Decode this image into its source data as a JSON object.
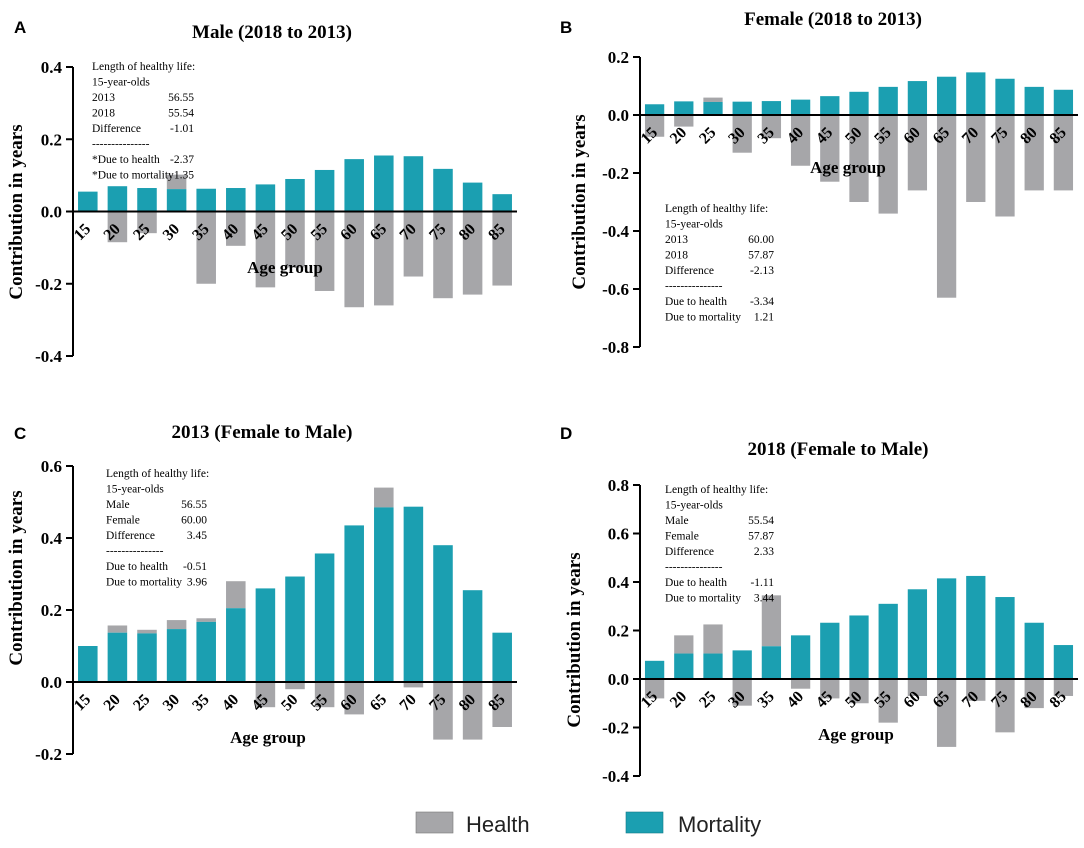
{
  "figure": {
    "legend": [
      {
        "label": "Health",
        "color": "#a6a6a9"
      },
      {
        "label": "Mortality",
        "color": "#1b9fb1"
      }
    ],
    "colors": {
      "health": "#a6a6a9",
      "mortality": "#1b9fb1",
      "axis": "#000000"
    }
  },
  "chart_data": [
    {
      "panel": "A",
      "type": "bar",
      "stacking": "stacked-diverging",
      "title": "Male (2018 to 2013)",
      "xlabel": "Age group",
      "ylabel": "Contribution in years",
      "ylim": [
        -0.4,
        0.4
      ],
      "yticks": [
        -0.4,
        -0.2,
        0.0,
        0.2,
        0.4
      ],
      "ytick_labels": [
        "-0.4",
        "-0.2",
        "0.0",
        "0.2",
        "0.4"
      ],
      "categories": [
        "15",
        "20",
        "25",
        "30",
        "35",
        "40",
        "45",
        "50",
        "55",
        "60",
        "65",
        "70",
        "75",
        "80",
        "85"
      ],
      "series": [
        {
          "name": "Health",
          "values": [
            0.0,
            -0.085,
            -0.06,
            0.04,
            -0.2,
            -0.095,
            -0.21,
            -0.155,
            -0.22,
            -0.265,
            -0.26,
            -0.18,
            -0.24,
            -0.23,
            -0.205
          ]
        },
        {
          "name": "Mortality",
          "values": [
            0.055,
            0.07,
            0.065,
            0.062,
            0.063,
            0.065,
            0.075,
            0.09,
            0.115,
            0.145,
            0.155,
            0.153,
            0.118,
            0.08,
            0.048
          ]
        }
      ],
      "annotation": [
        {
          "label": "Length of healthy life:",
          "value": ""
        },
        {
          "label": "15-year-olds",
          "value": ""
        },
        {
          "label": "2013",
          "value": "56.55"
        },
        {
          "label": "2018",
          "value": "55.54"
        },
        {
          "label": "Difference",
          "value": "-1.01"
        },
        {
          "label": "---------------",
          "value": ""
        },
        {
          "label": "*Due to health",
          "value": "-2.37"
        },
        {
          "label": "*Due to mortality",
          "value": "1.35"
        }
      ]
    },
    {
      "panel": "B",
      "type": "bar",
      "stacking": "stacked-diverging",
      "title": "Female (2018 to 2013)",
      "xlabel": "Age group",
      "ylabel": "Contribution in years",
      "ylim": [
        -0.8,
        0.2
      ],
      "yticks": [
        -0.8,
        -0.6,
        -0.4,
        -0.2,
        0.0,
        0.2
      ],
      "ytick_labels": [
        "-0.8",
        "-0.6",
        "-0.4",
        "-0.2",
        "0.0",
        "0.2"
      ],
      "categories": [
        "15",
        "20",
        "25",
        "30",
        "35",
        "40",
        "45",
        "50",
        "55",
        "60",
        "65",
        "70",
        "75",
        "80",
        "85"
      ],
      "series": [
        {
          "name": "Health",
          "values": [
            -0.075,
            -0.04,
            0.015,
            -0.13,
            -0.08,
            -0.175,
            -0.23,
            -0.3,
            -0.34,
            -0.26,
            -0.63,
            -0.3,
            -0.35,
            -0.26,
            -0.26
          ]
        },
        {
          "name": "Mortality",
          "values": [
            0.037,
            0.047,
            0.045,
            0.046,
            0.048,
            0.053,
            0.065,
            0.08,
            0.097,
            0.117,
            0.132,
            0.147,
            0.125,
            0.097,
            0.087
          ]
        }
      ],
      "annotation": [
        {
          "label": "Length of healthy life:",
          "value": ""
        },
        {
          "label": "15-year-olds",
          "value": ""
        },
        {
          "label": "2013",
          "value": "60.00"
        },
        {
          "label": "2018",
          "value": "57.87"
        },
        {
          "label": "Difference",
          "value": "-2.13"
        },
        {
          "label": "---------------",
          "value": ""
        },
        {
          "label": "Due to health",
          "value": "-3.34"
        },
        {
          "label": "Due to mortality",
          "value": "1.21"
        }
      ]
    },
    {
      "panel": "C",
      "type": "bar",
      "stacking": "stacked-diverging",
      "title": "2013 (Female to Male)",
      "xlabel": "Age group",
      "ylabel": "Contribution in years",
      "ylim": [
        -0.2,
        0.6
      ],
      "yticks": [
        -0.2,
        0.0,
        0.2,
        0.4,
        0.6
      ],
      "ytick_labels": [
        "-0.2",
        "0.0",
        "0.2",
        "0.4",
        "0.6"
      ],
      "categories": [
        "15",
        "20",
        "25",
        "30",
        "35",
        "40",
        "45",
        "50",
        "55",
        "60",
        "65",
        "70",
        "75",
        "80",
        "85"
      ],
      "series": [
        {
          "name": "Health",
          "values": [
            0.0,
            0.02,
            0.01,
            0.025,
            0.01,
            0.075,
            -0.07,
            -0.02,
            -0.07,
            -0.09,
            0.055,
            -0.015,
            -0.16,
            -0.16,
            -0.125
          ]
        },
        {
          "name": "Mortality",
          "values": [
            0.1,
            0.137,
            0.135,
            0.147,
            0.167,
            0.205,
            0.26,
            0.293,
            0.357,
            0.435,
            0.485,
            0.487,
            0.38,
            0.255,
            0.137
          ]
        }
      ],
      "annotation": [
        {
          "label": "Length of healthy life:",
          "value": ""
        },
        {
          "label": "15-year-olds",
          "value": ""
        },
        {
          "label": "Male",
          "value": "56.55"
        },
        {
          "label": "Female",
          "value": "60.00"
        },
        {
          "label": "Difference",
          "value": "3.45"
        },
        {
          "label": "---------------",
          "value": ""
        },
        {
          "label": "Due to health",
          "value": "-0.51"
        },
        {
          "label": "Due to mortality",
          "value": "3.96"
        }
      ]
    },
    {
      "panel": "D",
      "type": "bar",
      "stacking": "stacked-diverging",
      "title": "2018 (Female to Male)",
      "xlabel": "Age group",
      "ylabel": "Contribution in years",
      "ylim": [
        -0.4,
        0.8
      ],
      "yticks": [
        -0.4,
        -0.2,
        0.0,
        0.2,
        0.4,
        0.6,
        0.8
      ],
      "ytick_labels": [
        "-0.4",
        "-0.2",
        "0.0",
        "0.2",
        "0.4",
        "0.6",
        "0.8"
      ],
      "categories": [
        "15",
        "20",
        "25",
        "30",
        "35",
        "40",
        "45",
        "50",
        "55",
        "60",
        "65",
        "70",
        "75",
        "80",
        "85"
      ],
      "series": [
        {
          "name": "Health",
          "values": [
            -0.08,
            0.075,
            0.12,
            -0.11,
            0.21,
            -0.04,
            -0.08,
            -0.1,
            -0.18,
            -0.07,
            -0.28,
            -0.09,
            -0.22,
            -0.12,
            -0.07
          ]
        },
        {
          "name": "Mortality",
          "values": [
            0.075,
            0.105,
            0.105,
            0.118,
            0.135,
            0.18,
            0.232,
            0.262,
            0.31,
            0.37,
            0.415,
            0.425,
            0.338,
            0.232,
            0.14
          ]
        }
      ],
      "annotation": [
        {
          "label": "Length of healthy life:",
          "value": ""
        },
        {
          "label": "15-year-olds",
          "value": ""
        },
        {
          "label": "Male",
          "value": "55.54"
        },
        {
          "label": "Female",
          "value": "57.87"
        },
        {
          "label": "Difference",
          "value": "2.33"
        },
        {
          "label": "---------------",
          "value": ""
        },
        {
          "label": "Due to health",
          "value": "-1.11"
        },
        {
          "label": "Due to mortality",
          "value": "3.44"
        }
      ]
    }
  ]
}
